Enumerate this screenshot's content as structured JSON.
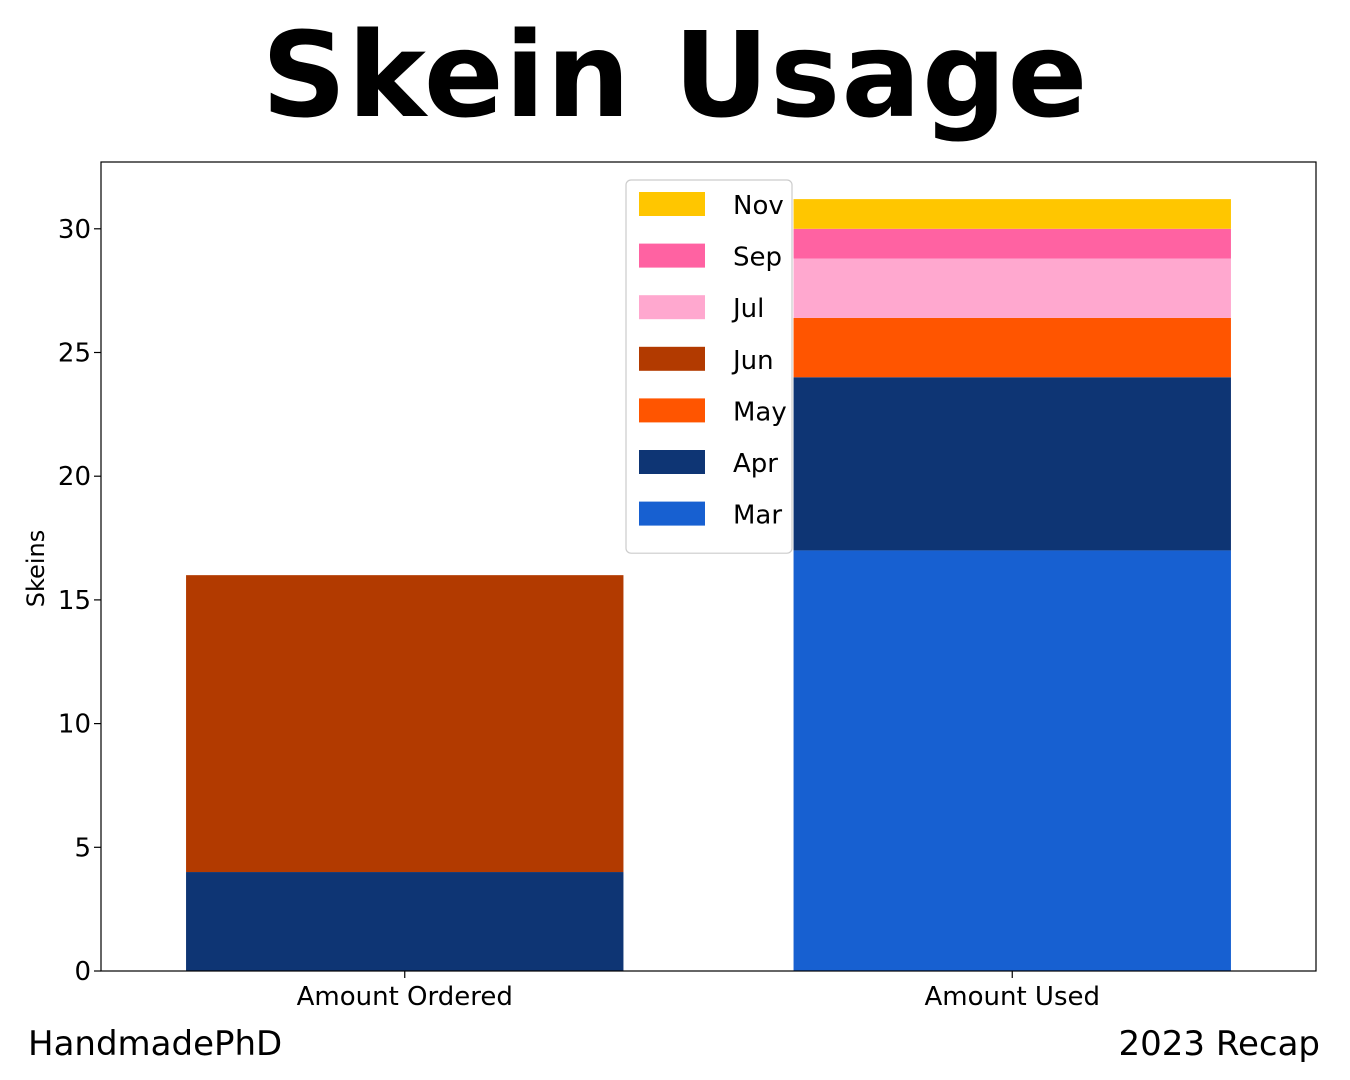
{
  "title": "Skein Usage",
  "footer": {
    "left": "HandmadePhD",
    "right": "2023 Recap"
  },
  "chart_data": {
    "type": "bar",
    "stacked": true,
    "categories": [
      "Amount Ordered",
      "Amount Used"
    ],
    "ylabel": "Skeins",
    "xlabel": "",
    "ylim": [
      0,
      32.7
    ],
    "yticks": [
      0,
      5,
      10,
      15,
      20,
      25,
      30
    ],
    "legend_position": "upper center",
    "series": [
      {
        "name": "Mar",
        "color": "#1760d1",
        "values": [
          0,
          17
        ]
      },
      {
        "name": "Apr",
        "color": "#0e3574",
        "values": [
          4,
          7
        ]
      },
      {
        "name": "May",
        "color": "#ff5500",
        "values": [
          0,
          2.4
        ]
      },
      {
        "name": "Jun",
        "color": "#b23a00",
        "values": [
          12,
          0
        ]
      },
      {
        "name": "Jul",
        "color": "#ffa8cf",
        "values": [
          0,
          2.4
        ]
      },
      {
        "name": "Sep",
        "color": "#ff62a2",
        "values": [
          0,
          1.2
        ]
      },
      {
        "name": "Nov",
        "color": "#ffc600",
        "values": [
          0,
          1.2
        ]
      }
    ]
  }
}
